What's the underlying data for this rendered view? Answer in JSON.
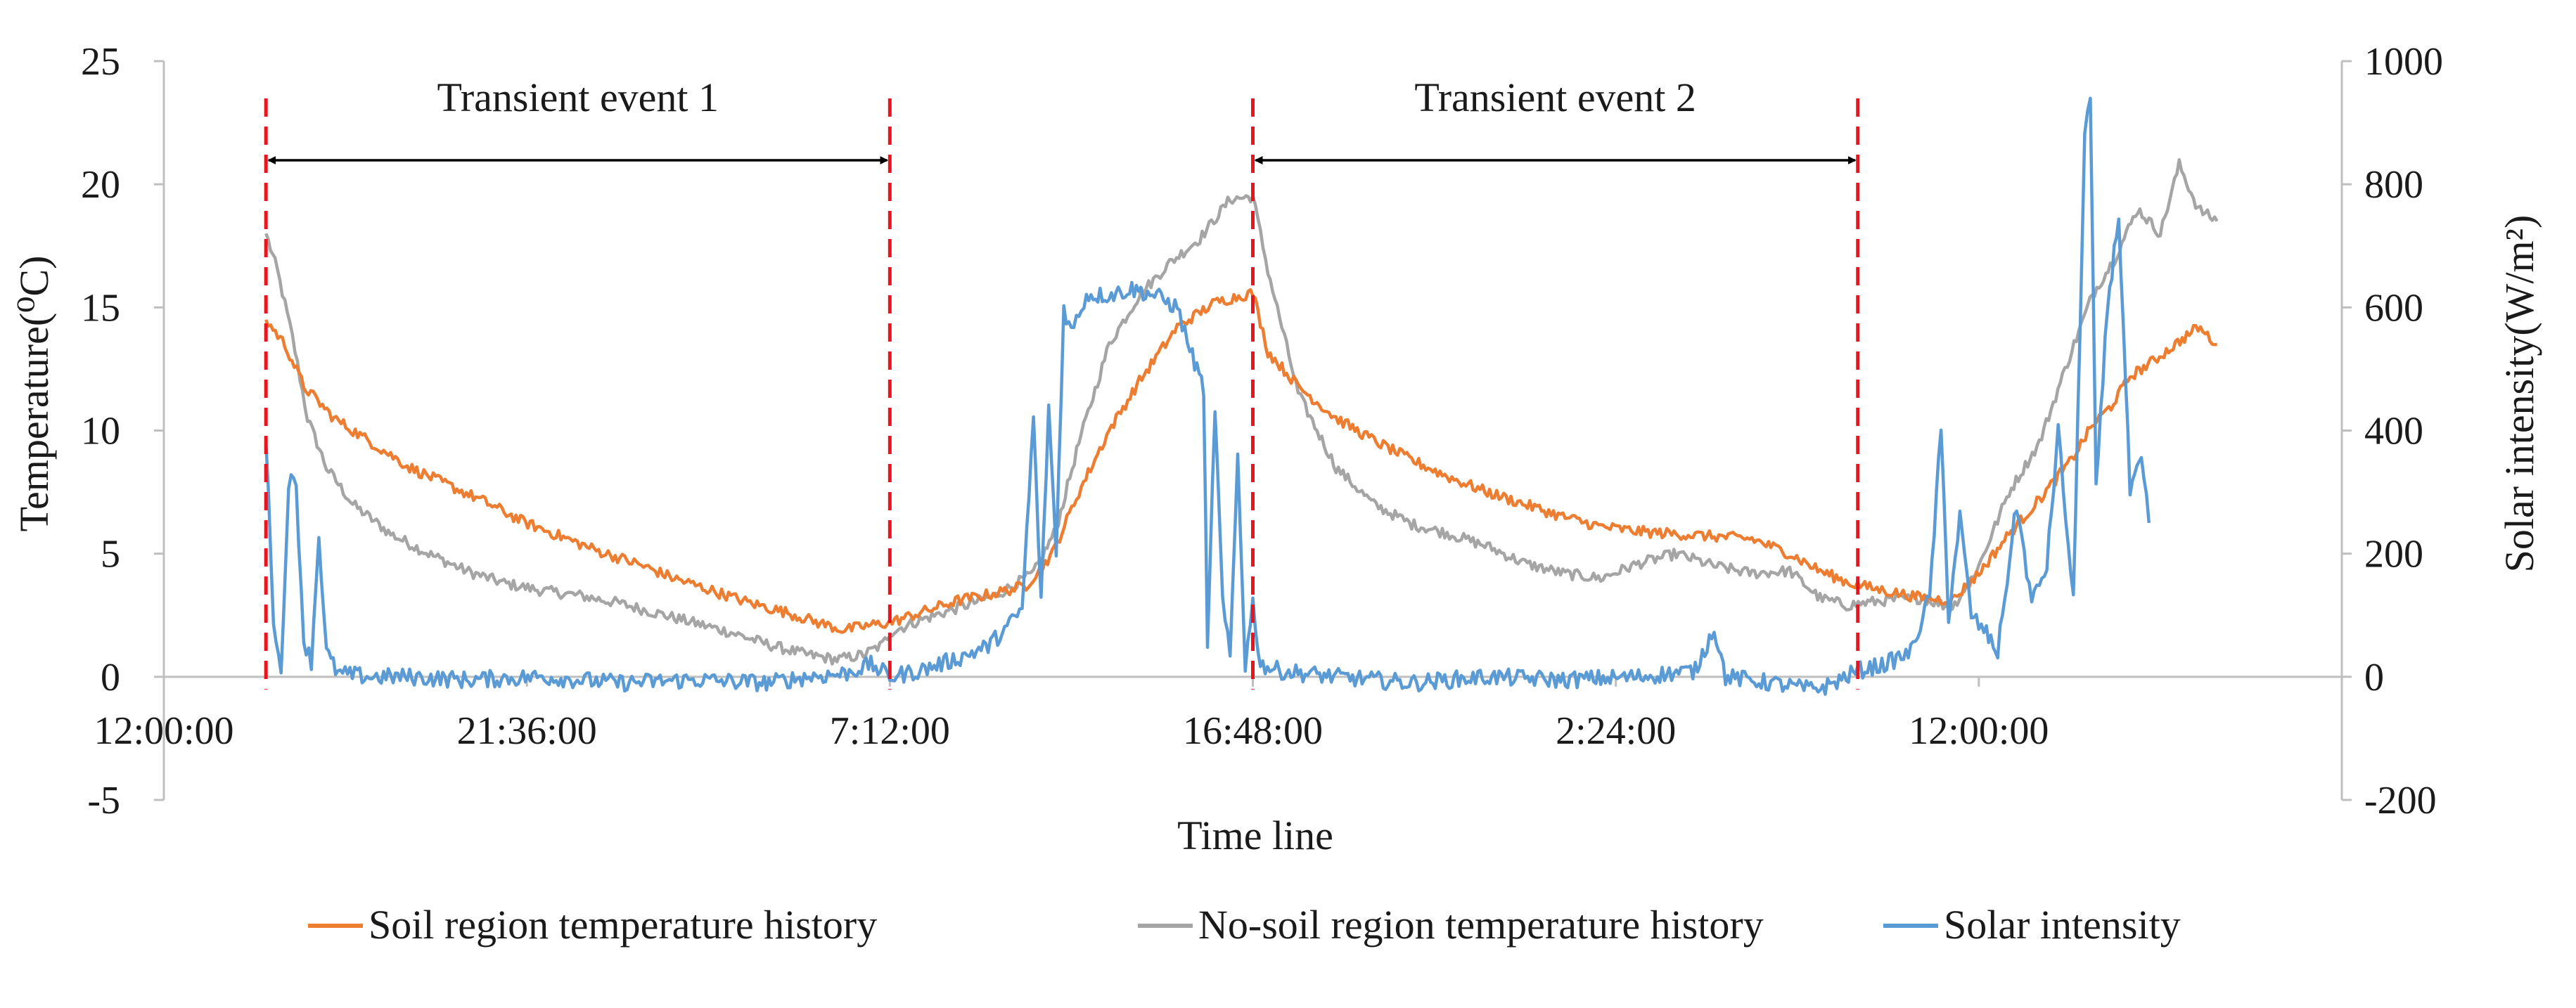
{
  "chart_data": {
    "type": "line",
    "title": "",
    "xlabel": "Time line",
    "ylabel": "Temperature(⁰C)",
    "ylabel_right": "Solar intensity(W/m²)",
    "ylim": [
      -5,
      25
    ],
    "ylim_right": [
      -200,
      1000
    ],
    "yticks": [
      {
        "value": -5,
        "label": "-5"
      },
      {
        "value": 0,
        "label": "0"
      },
      {
        "value": 5,
        "label": "5"
      },
      {
        "value": 10,
        "label": "10"
      },
      {
        "value": 15,
        "label": "15"
      },
      {
        "value": 20,
        "label": "20"
      },
      {
        "value": 25,
        "label": "25"
      }
    ],
    "yticks_right": [
      {
        "value": -200,
        "label": "-200"
      },
      {
        "value": 0,
        "label": "0"
      },
      {
        "value": 200,
        "label": "200"
      },
      {
        "value": 400,
        "label": "400"
      },
      {
        "value": 600,
        "label": "600"
      },
      {
        "value": 800,
        "label": "800"
      },
      {
        "value": 1000,
        "label": "1000"
      }
    ],
    "x_range_hours": [
      0,
      57.6
    ],
    "x_ticks": [
      {
        "hours": 0,
        "label": "12:00:00"
      },
      {
        "hours": 9.6,
        "label": "21:36:00"
      },
      {
        "hours": 19.2,
        "label": "7:12:00"
      },
      {
        "hours": 28.8,
        "label": "16:48:00"
      },
      {
        "hours": 38.4,
        "label": "2:24:00"
      },
      {
        "hours": 48.0,
        "label": "12:00:00"
      }
    ],
    "events": [
      {
        "label": "Transient event 1",
        "start_hours": 2.7,
        "end_hours": 19.2
      },
      {
        "label": "Transient event 2",
        "start_hours": 28.8,
        "end_hours": 44.8
      }
    ],
    "series": [
      {
        "name": "Soil region temperature history",
        "axis": "left",
        "color": "#ED7D31",
        "points": [
          [
            2.7,
            14.5
          ],
          [
            3.2,
            13.5
          ],
          [
            3.7,
            11.8
          ],
          [
            4.5,
            10.5
          ],
          [
            5.5,
            9.5
          ],
          [
            6.5,
            8.5
          ],
          [
            7.5,
            7.8
          ],
          [
            8.5,
            7.1
          ],
          [
            9.5,
            6.3
          ],
          [
            10.5,
            5.7
          ],
          [
            11.5,
            5.1
          ],
          [
            12.5,
            4.6
          ],
          [
            13.5,
            4.0
          ],
          [
            14.5,
            3.5
          ],
          [
            15.5,
            3.0
          ],
          [
            16.5,
            2.6
          ],
          [
            17.3,
            2.2
          ],
          [
            18.0,
            1.9
          ],
          [
            18.7,
            2.1
          ],
          [
            19.2,
            2.2
          ],
          [
            20.0,
            2.6
          ],
          [
            21.0,
            3.1
          ],
          [
            22.0,
            3.4
          ],
          [
            22.8,
            3.7
          ],
          [
            23.5,
            5.0
          ],
          [
            24.2,
            7.5
          ],
          [
            25.0,
            10.0
          ],
          [
            25.8,
            12.0
          ],
          [
            26.8,
            14.2
          ],
          [
            27.8,
            15.2
          ],
          [
            28.8,
            15.6
          ],
          [
            29.2,
            13.2
          ],
          [
            30.0,
            11.8
          ],
          [
            31.0,
            10.5
          ],
          [
            32.0,
            9.6
          ],
          [
            33.0,
            8.8
          ],
          [
            34.0,
            8.1
          ],
          [
            35.0,
            7.5
          ],
          [
            36.0,
            7.0
          ],
          [
            37.0,
            6.5
          ],
          [
            38.0,
            6.1
          ],
          [
            39.0,
            5.9
          ],
          [
            40.0,
            5.8
          ],
          [
            41.0,
            5.7
          ],
          [
            42.0,
            5.6
          ],
          [
            43.0,
            5.0
          ],
          [
            43.8,
            4.3
          ],
          [
            44.6,
            3.8
          ],
          [
            45.5,
            3.5
          ],
          [
            46.5,
            3.2
          ],
          [
            47.3,
            3.1
          ],
          [
            48.0,
            4.2
          ],
          [
            48.8,
            5.8
          ],
          [
            49.6,
            7.2
          ],
          [
            50.4,
            8.7
          ],
          [
            51.0,
            10.2
          ],
          [
            51.5,
            11.0
          ],
          [
            52.0,
            12.2
          ],
          [
            52.6,
            12.8
          ],
          [
            53.2,
            13.5
          ],
          [
            53.8,
            14.2
          ],
          [
            54.3,
            13.5
          ]
        ]
      },
      {
        "name": "No-soil region temperature history",
        "axis": "left",
        "color": "#A5A5A5",
        "points": [
          [
            2.7,
            18.0
          ],
          [
            3.0,
            16.5
          ],
          [
            3.4,
            13.8
          ],
          [
            3.8,
            10.5
          ],
          [
            4.3,
            8.5
          ],
          [
            5.0,
            7.0
          ],
          [
            6.0,
            5.8
          ],
          [
            7.0,
            5.0
          ],
          [
            8.0,
            4.3
          ],
          [
            9.0,
            3.8
          ],
          [
            10.0,
            3.5
          ],
          [
            11.0,
            3.3
          ],
          [
            12.0,
            3.0
          ],
          [
            13.0,
            2.6
          ],
          [
            14.0,
            2.2
          ],
          [
            15.0,
            1.8
          ],
          [
            16.0,
            1.3
          ],
          [
            17.0,
            0.9
          ],
          [
            17.8,
            0.7
          ],
          [
            18.5,
            0.9
          ],
          [
            19.0,
            1.3
          ],
          [
            19.2,
            1.8
          ],
          [
            20.0,
            2.3
          ],
          [
            21.0,
            2.8
          ],
          [
            22.0,
            3.3
          ],
          [
            23.0,
            4.2
          ],
          [
            23.6,
            6.0
          ],
          [
            24.2,
            9.5
          ],
          [
            25.0,
            13.5
          ],
          [
            25.8,
            15.5
          ],
          [
            26.6,
            16.8
          ],
          [
            27.4,
            17.8
          ],
          [
            28.2,
            19.4
          ],
          [
            28.8,
            19.5
          ],
          [
            29.2,
            16.5
          ],
          [
            30.0,
            11.5
          ],
          [
            31.0,
            8.5
          ],
          [
            32.0,
            7.0
          ],
          [
            33.0,
            6.2
          ],
          [
            34.0,
            5.8
          ],
          [
            35.0,
            5.3
          ],
          [
            36.0,
            4.6
          ],
          [
            37.0,
            4.2
          ],
          [
            38.0,
            4.0
          ],
          [
            39.0,
            4.6
          ],
          [
            40.0,
            5.0
          ],
          [
            41.0,
            4.5
          ],
          [
            42.0,
            4.2
          ],
          [
            43.0,
            4.3
          ],
          [
            43.8,
            3.2
          ],
          [
            44.5,
            2.9
          ],
          [
            45.5,
            3.1
          ],
          [
            46.5,
            3.2
          ],
          [
            47.3,
            2.8
          ],
          [
            48.0,
            4.5
          ],
          [
            48.8,
            7.5
          ],
          [
            49.6,
            9.5
          ],
          [
            50.4,
            13.0
          ],
          [
            51.0,
            15.5
          ],
          [
            51.6,
            17.0
          ],
          [
            52.2,
            19.0
          ],
          [
            52.8,
            18.0
          ],
          [
            53.3,
            20.8
          ],
          [
            53.8,
            19.0
          ],
          [
            54.3,
            18.5
          ]
        ]
      },
      {
        "name": "Solar intensity",
        "axis": "right",
        "color": "#5B9BD5",
        "points": [
          [
            2.7,
            380
          ],
          [
            2.9,
            100
          ],
          [
            3.1,
            0
          ],
          [
            3.3,
            320
          ],
          [
            3.5,
            310
          ],
          [
            3.7,
            60
          ],
          [
            3.9,
            25
          ],
          [
            4.1,
            230
          ],
          [
            4.3,
            40
          ],
          [
            4.6,
            5
          ],
          [
            5.5,
            0
          ],
          [
            6.5,
            0
          ],
          [
            8.0,
            -5
          ],
          [
            10.0,
            0
          ],
          [
            12.0,
            -10
          ],
          [
            14.0,
            -5
          ],
          [
            16.0,
            -10
          ],
          [
            17.0,
            0
          ],
          [
            18.0,
            5
          ],
          [
            18.7,
            20
          ],
          [
            19.2,
            0
          ],
          [
            20.0,
            10
          ],
          [
            21.0,
            30
          ],
          [
            21.8,
            50
          ],
          [
            22.3,
            80
          ],
          [
            22.7,
            110
          ],
          [
            23.0,
            420
          ],
          [
            23.2,
            120
          ],
          [
            23.4,
            440
          ],
          [
            23.6,
            200
          ],
          [
            23.8,
            600
          ],
          [
            24.0,
            560
          ],
          [
            24.4,
            620
          ],
          [
            25.0,
            620
          ],
          [
            25.6,
            630
          ],
          [
            26.2,
            620
          ],
          [
            26.8,
            600
          ],
          [
            27.2,
            520
          ],
          [
            27.5,
            470
          ],
          [
            27.6,
            40
          ],
          [
            27.8,
            440
          ],
          [
            28.0,
            120
          ],
          [
            28.2,
            30
          ],
          [
            28.4,
            360
          ],
          [
            28.6,
            20
          ],
          [
            28.8,
            120
          ],
          [
            29.0,
            20
          ],
          [
            29.5,
            10
          ],
          [
            31.0,
            0
          ],
          [
            33.0,
            -10
          ],
          [
            35.0,
            0
          ],
          [
            37.0,
            -5
          ],
          [
            39.0,
            0
          ],
          [
            40.5,
            10
          ],
          [
            41.0,
            80
          ],
          [
            41.3,
            0
          ],
          [
            42.5,
            -10
          ],
          [
            43.5,
            -20
          ],
          [
            44.0,
            -15
          ],
          [
            44.8,
            10
          ],
          [
            45.5,
            20
          ],
          [
            46.2,
            40
          ],
          [
            46.7,
            130
          ],
          [
            47.0,
            400
          ],
          [
            47.2,
            100
          ],
          [
            47.5,
            260
          ],
          [
            47.8,
            100
          ],
          [
            48.2,
            70
          ],
          [
            48.5,
            40
          ],
          [
            49.0,
            280
          ],
          [
            49.4,
            120
          ],
          [
            49.8,
            180
          ],
          [
            50.1,
            400
          ],
          [
            50.5,
            120
          ],
          [
            50.8,
            880
          ],
          [
            50.95,
            940
          ],
          [
            51.1,
            300
          ],
          [
            51.4,
            600
          ],
          [
            51.7,
            750
          ],
          [
            52.0,
            300
          ],
          [
            52.3,
            350
          ],
          [
            52.5,
            250
          ]
        ]
      }
    ],
    "legend_position": "bottom"
  }
}
